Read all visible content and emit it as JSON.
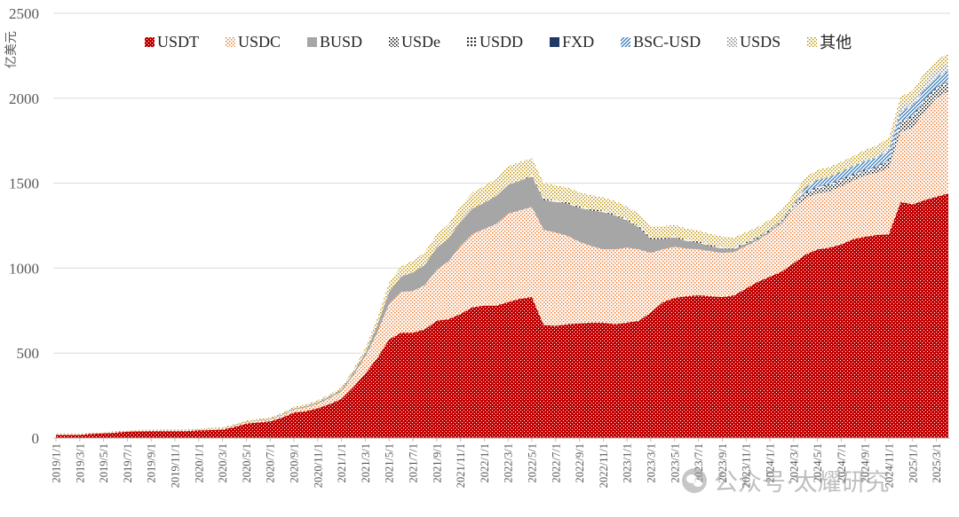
{
  "chart_data": {
    "type": "area",
    "stacked": true,
    "title": "",
    "ylabel": "亿美元",
    "xlabel": "",
    "ylim": [
      0,
      2500
    ],
    "yticks": [
      0,
      500,
      1000,
      1500,
      2000,
      2500
    ],
    "grid": true,
    "legend_position": "top",
    "xtick_every": 2,
    "xticks": [
      "2019/1/1",
      "2019/3/1",
      "2019/5/1",
      "2019/7/1",
      "2019/9/1",
      "2019/11/1",
      "2020/1/1",
      "2020/3/1",
      "2020/5/1",
      "2020/7/1",
      "2020/9/1",
      "2020/11/1",
      "2021/1/1",
      "2021/3/1",
      "2021/5/1",
      "2021/7/1",
      "2021/9/1",
      "2021/11/1",
      "2022/1/1",
      "2022/3/1",
      "2022/5/1",
      "2022/7/1",
      "2022/9/1",
      "2022/11/1",
      "2023/1/1",
      "2023/3/1",
      "2023/5/1",
      "2023/7/1",
      "2023/9/1",
      "2023/11/1",
      "2024/1/1",
      "2024/3/1",
      "2024/5/1",
      "2024/7/1",
      "2024/9/1",
      "2024/11/1",
      "2025/1/1",
      "2025/3/1"
    ],
    "series": [
      {
        "name": "USDT",
        "color": "#ffffff",
        "background": "#c00000",
        "values": [
          20,
          20,
          20,
          25,
          28,
          32,
          38,
          40,
          41,
          41,
          41,
          41,
          45,
          47,
          50,
          65,
          85,
          92,
          98,
          120,
          150,
          158,
          175,
          200,
          230,
          300,
          380,
          470,
          580,
          620,
          620,
          640,
          690,
          700,
          730,
          770,
          780,
          780,
          800,
          820,
          830,
          665,
          660,
          670,
          675,
          680,
          680,
          670,
          680,
          690,
          740,
          800,
          825,
          835,
          840,
          835,
          830,
          840,
          880,
          920,
          950,
          980,
          1030,
          1080,
          1110,
          1120,
          1140,
          1170,
          1185,
          1195,
          1200,
          1390,
          1375,
          1400,
          1420,
          1440
        ]
      },
      {
        "name": "USDC",
        "color": "#ed7d31",
        "background": "#ffffff",
        "values": [
          4,
          4,
          4,
          4,
          4,
          5,
          5,
          5,
          5,
          5,
          5,
          5,
          5,
          6,
          7,
          8,
          9,
          10,
          11,
          14,
          18,
          22,
          27,
          35,
          45,
          70,
          100,
          150,
          210,
          240,
          245,
          260,
          300,
          340,
          400,
          430,
          450,
          480,
          520,
          520,
          530,
          560,
          550,
          520,
          480,
          450,
          430,
          440,
          440,
          420,
          350,
          310,
          300,
          280,
          270,
          265,
          260,
          255,
          250,
          245,
          260,
          285,
          320,
          330,
          330,
          330,
          340,
          345,
          360,
          365,
          390,
          410,
          450,
          520,
          580,
          600
        ]
      },
      {
        "name": "BUSD",
        "color": "#a6a6a6",
        "background": "#a6a6a6",
        "values": [
          0,
          0,
          0,
          0,
          0,
          0,
          0,
          0,
          0.5,
          1,
          1,
          1,
          2,
          2,
          2,
          3,
          3,
          3,
          4,
          5,
          6,
          7,
          8,
          9,
          10,
          15,
          20,
          40,
          70,
          90,
          110,
          120,
          130,
          135,
          145,
          150,
          155,
          165,
          170,
          175,
          180,
          175,
          180,
          190,
          200,
          210,
          220,
          200,
          160,
          130,
          80,
          60,
          55,
          45,
          40,
          30,
          25,
          18,
          14,
          10,
          8,
          5,
          3,
          2,
          1,
          1,
          1,
          1,
          1,
          1,
          1,
          1,
          1,
          1,
          1,
          1
        ]
      },
      {
        "name": "USDe",
        "color": "#000000",
        "background": "#ffffff",
        "values": [
          0,
          0,
          0,
          0,
          0,
          0,
          0,
          0,
          0,
          0,
          0,
          0,
          0,
          0,
          0,
          0,
          0,
          0,
          0,
          0,
          0,
          0,
          0,
          0,
          0,
          0,
          0,
          0,
          0,
          0,
          0,
          0,
          0,
          0,
          0,
          0,
          0,
          0,
          0,
          0,
          0,
          0,
          0,
          0,
          0,
          0,
          0,
          0,
          0,
          0,
          0,
          0,
          0,
          0,
          0,
          0,
          0,
          0,
          0,
          0,
          0,
          5,
          15,
          25,
          30,
          35,
          35,
          28,
          25,
          28,
          40,
          58,
          60,
          62,
          55,
          50
        ]
      },
      {
        "name": "USDD",
        "color": "#000000",
        "background": "#ffffff",
        "values": [
          0,
          0,
          0,
          0,
          0,
          0,
          0,
          0,
          0,
          0,
          0,
          0,
          0,
          0,
          0,
          0,
          0,
          0,
          0,
          0,
          0,
          0,
          0,
          0,
          0,
          0,
          0,
          0,
          0,
          0,
          0,
          0,
          0,
          0,
          0,
          0,
          0,
          0,
          0,
          0,
          7,
          7,
          7,
          7,
          7,
          7,
          7,
          7,
          7,
          7,
          7,
          7,
          7,
          7,
          7,
          7,
          7,
          7,
          7,
          7,
          7,
          7,
          7,
          7,
          7,
          7,
          7,
          7,
          7,
          7,
          7,
          7,
          7,
          7,
          7,
          7
        ]
      },
      {
        "name": "FXD",
        "color": "#1f3864",
        "background": "#1f3864",
        "values": [
          0,
          0,
          0,
          0,
          0,
          0,
          0,
          0,
          0,
          0,
          0,
          0,
          0,
          0,
          0,
          0,
          0,
          0,
          0,
          0,
          0,
          0,
          0,
          0,
          0,
          0,
          0,
          0,
          0,
          0,
          0,
          0,
          0,
          0,
          0,
          0,
          0,
          0,
          0,
          0,
          0,
          0,
          0,
          0,
          0,
          0,
          0,
          0,
          0,
          0,
          0,
          0,
          0,
          0,
          0,
          0,
          0,
          0,
          0,
          2,
          2,
          2,
          2,
          2,
          2,
          2,
          2,
          2,
          2,
          2,
          2,
          2,
          2,
          2,
          2,
          2
        ]
      },
      {
        "name": "BSC-USD",
        "color": "#2e75b6",
        "background": "#ffffff",
        "values": [
          0,
          0,
          0,
          0,
          0,
          0,
          0,
          0,
          0,
          0,
          0,
          0,
          0,
          0,
          0,
          0,
          0,
          0,
          0,
          0,
          0,
          0,
          0,
          0,
          0,
          0,
          0,
          0,
          0,
          0,
          0,
          0,
          0,
          0,
          0,
          0,
          0,
          0,
          0,
          0,
          0,
          0,
          0,
          0,
          0,
          0,
          0,
          0,
          0,
          0,
          0,
          0,
          0,
          0,
          0,
          0,
          0,
          0,
          0,
          0,
          0,
          0,
          0,
          30,
          40,
          42,
          45,
          48,
          50,
          52,
          55,
          58,
          60,
          60,
          60,
          60
        ]
      },
      {
        "name": "USDS",
        "color": "#7f7f7f",
        "background": "#ffffff",
        "values": [
          0,
          0,
          0,
          0,
          0,
          0,
          0,
          0,
          0,
          0,
          0,
          0,
          0,
          0,
          0,
          0,
          0,
          0,
          0,
          0,
          0,
          0,
          0,
          0,
          0,
          0,
          0,
          0,
          0,
          0,
          0,
          0,
          0,
          0,
          0,
          0,
          0,
          0,
          0,
          0,
          0,
          0,
          0,
          0,
          0,
          0,
          0,
          0,
          0,
          0,
          0,
          0,
          0,
          0,
          0,
          0,
          0,
          0,
          0,
          0,
          0,
          0,
          0,
          0,
          0,
          0,
          0,
          0,
          10,
          15,
          20,
          30,
          35,
          45,
          45,
          50
        ]
      },
      {
        "name": "其他",
        "color": "#bf9000",
        "background": "#ffffff",
        "values": [
          3,
          3,
          3,
          3,
          3,
          3,
          3,
          3,
          3,
          3,
          3,
          3,
          4,
          5,
          5,
          6,
          7,
          8,
          9,
          10,
          11,
          12,
          13,
          14,
          15,
          20,
          30,
          45,
          55,
          60,
          70,
          75,
          80,
          85,
          90,
          95,
          100,
          105,
          110,
          110,
          100,
          95,
          90,
          88,
          85,
          82,
          80,
          78,
          75,
          72,
          70,
          70,
          68,
          66,
          65,
          65,
          64,
          62,
          62,
          60,
          60,
          60,
          60,
          60,
          60,
          58,
          58,
          58,
          58,
          58,
          56,
          56,
          55,
          55,
          55,
          55
        ]
      }
    ]
  },
  "watermark": {
    "icon": "wechat-icon",
    "text": "公众号·太耀研究"
  }
}
